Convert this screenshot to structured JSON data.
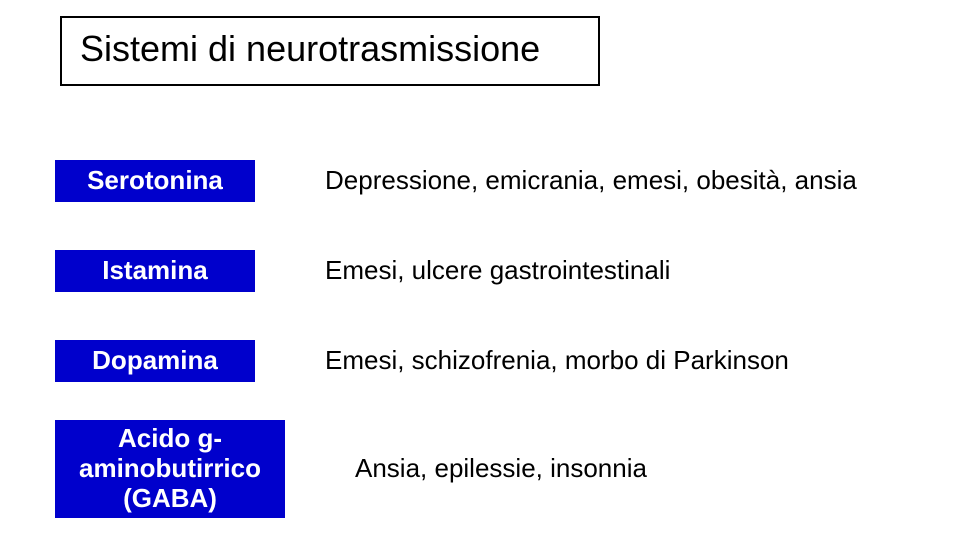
{
  "title": "Sistemi di neurotrasmissione",
  "colors": {
    "pill_bg": "#0000cc",
    "pill_text": "#ffffff",
    "body_text": "#000000",
    "title_border": "#000000",
    "background": "#ffffff"
  },
  "typography": {
    "font_family": "Arial, Helvetica, sans-serif",
    "title_fontsize": 36,
    "pill_fontsize": 26,
    "desc_fontsize": 26,
    "pill_fontweight": 700
  },
  "rows": [
    {
      "label": "Serotonina",
      "desc": "Depressione, emicrania, emesi, obesità, ansia",
      "multiline": false
    },
    {
      "label": "Istamina",
      "desc": "Emesi, ulcere gastrointestinali",
      "multiline": false
    },
    {
      "label": "Dopamina",
      "desc": "Emesi, schizofrenia, morbo di Parkinson",
      "multiline": false
    },
    {
      "label": "Acido g-\naminobutirrico\n(GABA)",
      "desc": "Ansia, epilessie, insonnia",
      "multiline": true
    }
  ]
}
